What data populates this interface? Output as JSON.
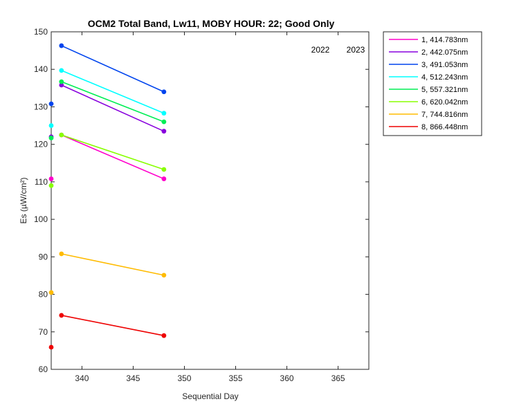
{
  "chart_data": {
    "type": "line",
    "title": "OCM2 Total Band,  Lw11, MOBY HOUR: 22;  Good Only",
    "xlabel": "Sequential Day",
    "ylabel": "Es (µW/cm²)",
    "xlim": [
      337,
      368
    ],
    "ylim": [
      60,
      150
    ],
    "xticks": [
      340,
      345,
      350,
      355,
      360,
      365
    ],
    "yticks": [
      60,
      70,
      80,
      90,
      100,
      110,
      120,
      130,
      140,
      150
    ],
    "annotations": [
      "2022",
      "2023"
    ],
    "series": [
      {
        "name": "1, 414.783nm",
        "color": "#ff00cc",
        "x": [
          337,
          338,
          348
        ],
        "y": [
          110.8,
          122.5,
          110.8
        ]
      },
      {
        "name": "2, 442.075nm",
        "color": "#8800dd",
        "x": [
          337,
          338,
          348
        ],
        "y": [
          122.0,
          135.8,
          123.5
        ]
      },
      {
        "name": "3, 491.053nm",
        "color": "#0044ee",
        "x": [
          337,
          338,
          348
        ],
        "y": [
          130.8,
          146.3,
          134.0
        ]
      },
      {
        "name": "4, 512.243nm",
        "color": "#00ffff",
        "x": [
          337,
          338,
          348
        ],
        "y": [
          125.0,
          139.7,
          128.3
        ]
      },
      {
        "name": "5, 557.321nm",
        "color": "#00ee55",
        "x": [
          337,
          338,
          348
        ],
        "y": [
          121.7,
          136.7,
          126.0
        ]
      },
      {
        "name": "6, 620.042nm",
        "color": "#88ff00",
        "x": [
          337,
          338,
          348
        ],
        "y": [
          109.0,
          122.5,
          113.3
        ]
      },
      {
        "name": "7, 744.816nm",
        "color": "#ffbb00",
        "x": [
          337,
          338,
          348
        ],
        "y": [
          80.5,
          90.8,
          85.1
        ]
      },
      {
        "name": "8, 866.448nm",
        "color": "#ee0000",
        "x": [
          337,
          338,
          348
        ],
        "y": [
          65.9,
          74.4,
          69.0
        ]
      }
    ]
  }
}
